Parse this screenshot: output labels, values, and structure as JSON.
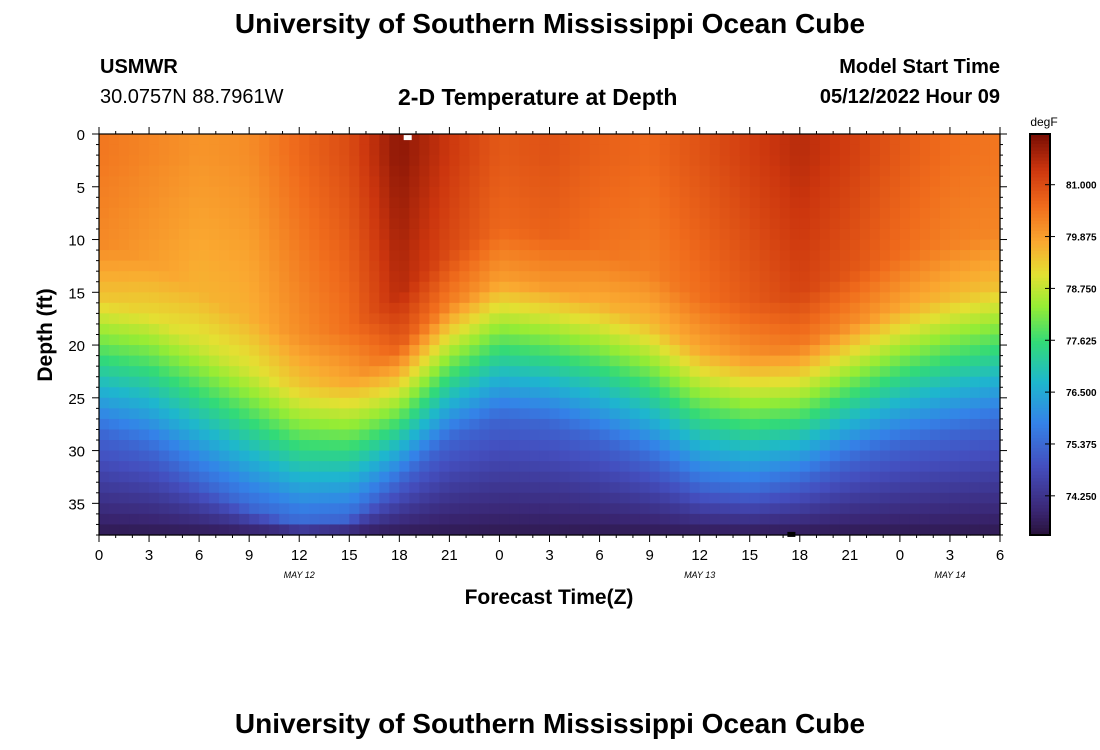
{
  "header": {
    "title": "University of Southern Mississippi Ocean Cube",
    "station": "USMWR",
    "coords": "30.0757N  88.7961W",
    "subtitle": "2-D Temperature at Depth",
    "start_label": "Model Start Time",
    "start_value": "05/12/2022 Hour 09"
  },
  "footer": {
    "title": "University of Southern Mississippi Ocean Cube"
  },
  "chart_data": {
    "type": "heatmap",
    "title": "2-D Temperature at Depth",
    "xlabel": "Forecast Time(Z)",
    "ylabel": "Depth (ft)",
    "x_range_hours": [
      0,
      54
    ],
    "y_range_ft": [
      0,
      38
    ],
    "x_tick_labels": [
      "0",
      "3",
      "6",
      "9",
      "12",
      "15",
      "18",
      "21",
      "0",
      "3",
      "6",
      "9",
      "12",
      "15",
      "18",
      "21",
      "0",
      "3",
      "6"
    ],
    "x_tick_hours": [
      0,
      3,
      6,
      9,
      12,
      15,
      18,
      21,
      24,
      27,
      30,
      33,
      36,
      39,
      42,
      45,
      48,
      51,
      54
    ],
    "y_ticks": [
      0,
      5,
      10,
      15,
      20,
      25,
      30,
      35
    ],
    "date_labels": [
      {
        "text": "MAY 12",
        "hour": 12
      },
      {
        "text": "MAY 13",
        "hour": 36
      },
      {
        "text": "MAY 14",
        "hour": 51
      }
    ],
    "colorbar": {
      "unit": "degF",
      "min": 73.4,
      "max": 82.1,
      "ticks": [
        81.0,
        79.875,
        78.75,
        77.625,
        76.5,
        75.375,
        74.25
      ],
      "tick_labels": [
        "81.000",
        "79.875",
        "78.750",
        "77.625",
        "76.500",
        "75.375",
        "74.250"
      ]
    },
    "thermocline": {
      "description": "boundary depth (ft) between warm surface layer and cool bottom layer over forecast hours",
      "hours": [
        0,
        3,
        6,
        9,
        12,
        15,
        18,
        21,
        24,
        27,
        30,
        33,
        36,
        39,
        42,
        45,
        48,
        51,
        54
      ],
      "depth_ft": [
        19.5,
        21,
        24,
        26.5,
        28,
        27.5,
        24,
        20,
        18,
        18.5,
        20,
        22,
        24.5,
        25,
        24,
        22,
        20.5,
        19.5,
        18.5
      ]
    },
    "surface_temp_degF": {
      "hours": [
        0,
        3,
        6,
        9,
        12,
        15,
        18,
        21,
        24,
        27,
        30,
        33,
        36,
        39,
        42,
        45,
        48,
        51,
        54
      ],
      "values": [
        80.4,
        80.2,
        80.0,
        80.1,
        80.6,
        81.0,
        81.9,
        81.3,
        80.8,
        80.9,
        80.7,
        80.6,
        80.9,
        81.2,
        81.5,
        81.2,
        80.8,
        80.5,
        80.4
      ]
    },
    "markers": [
      {
        "name": "white-marker",
        "hour": 18.5,
        "depth_ft": 0.2,
        "color": "#ffffff"
      },
      {
        "name": "black-marker",
        "hour": 41.5,
        "depth_ft": 37.8,
        "color": "#000000"
      }
    ]
  }
}
